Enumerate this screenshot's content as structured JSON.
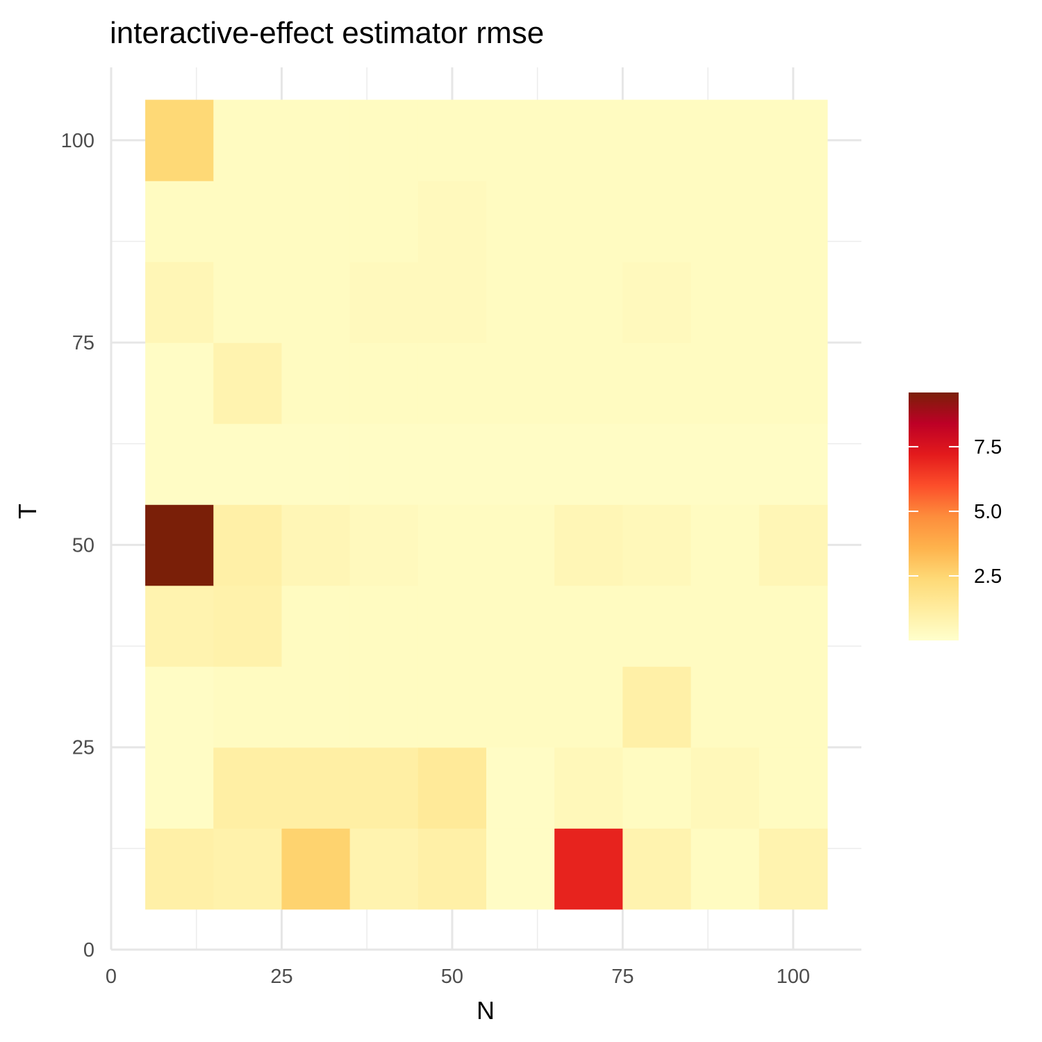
{
  "chart_data": {
    "type": "heatmap",
    "title": "interactive-effect estimator rmse",
    "xlabel": "N",
    "ylabel": "T",
    "xlim": [
      0,
      110
    ],
    "ylim": [
      0,
      109
    ],
    "x_ticks": [
      0,
      25,
      50,
      75,
      100
    ],
    "y_ticks": [
      0,
      25,
      50,
      75,
      100
    ],
    "x": [
      10,
      20,
      30,
      40,
      50,
      60,
      70,
      80,
      90,
      100
    ],
    "y": [
      10,
      20,
      30,
      40,
      50,
      60,
      70,
      80,
      90,
      100
    ],
    "values": [
      [
        1.0,
        0.9,
        2.6,
        0.8,
        1.0,
        0.2,
        7.0,
        0.8,
        0.3,
        0.8
      ],
      [
        0.2,
        1.1,
        1.1,
        1.1,
        1.4,
        0.2,
        0.5,
        0.3,
        0.5,
        0.3
      ],
      [
        0.2,
        0.3,
        0.3,
        0.3,
        0.3,
        0.3,
        0.3,
        1.0,
        0.3,
        0.3
      ],
      [
        0.8,
        0.9,
        0.3,
        0.3,
        0.3,
        0.3,
        0.3,
        0.3,
        0.3,
        0.3
      ],
      [
        9.6,
        1.0,
        0.6,
        0.4,
        0.3,
        0.3,
        0.6,
        0.5,
        0.3,
        0.6
      ],
      [
        0.2,
        0.2,
        0.2,
        0.2,
        0.2,
        0.2,
        0.2,
        0.2,
        0.2,
        0.2
      ],
      [
        0.2,
        0.8,
        0.3,
        0.3,
        0.3,
        0.3,
        0.3,
        0.3,
        0.3,
        0.3
      ],
      [
        0.6,
        0.3,
        0.3,
        0.4,
        0.4,
        0.3,
        0.3,
        0.4,
        0.3,
        0.3
      ],
      [
        0.3,
        0.3,
        0.3,
        0.3,
        0.4,
        0.3,
        0.3,
        0.3,
        0.3,
        0.3
      ],
      [
        2.4,
        0.3,
        0.3,
        0.3,
        0.3,
        0.3,
        0.3,
        0.3,
        0.3,
        0.3
      ]
    ],
    "legend": {
      "title": "",
      "position": "right",
      "range": [
        0.0,
        9.6
      ],
      "ticks": [
        2.5,
        5.0,
        7.5
      ],
      "tick_labels": [
        "2.5",
        "5.0",
        "7.5"
      ],
      "colors": [
        "#FFFFCC",
        "#FFEDA0",
        "#FED976",
        "#FEB24C",
        "#FD8D3C",
        "#FC4E2A",
        "#E31A1C",
        "#BD0026",
        "#7A1F08"
      ]
    },
    "grid": true
  }
}
